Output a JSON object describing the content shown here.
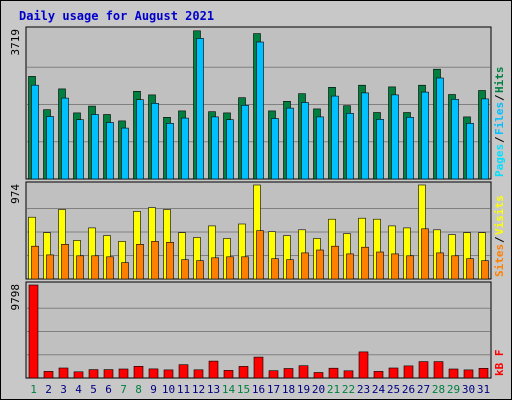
{
  "chart_data": {
    "type": "bar",
    "title": "Daily usage for August 2021",
    "categories": [
      "1",
      "2",
      "3",
      "4",
      "5",
      "6",
      "7",
      "8",
      "9",
      "10",
      "11",
      "12",
      "13",
      "14",
      "15",
      "16",
      "17",
      "18",
      "19",
      "20",
      "21",
      "22",
      "23",
      "24",
      "25",
      "26",
      "27",
      "28",
      "29",
      "30",
      "31"
    ],
    "weekend_days": [
      "1",
      "7",
      "8",
      "14",
      "15",
      "21",
      "22",
      "28",
      "29"
    ],
    "colors": {
      "background": "#c8c8c8",
      "plot": "#c0c0c0",
      "hits": "#008040",
      "files": "#00c0ff",
      "pages": "#00e0ff",
      "visits": "#ffff00",
      "sites": "#ff8000",
      "kb": "#ff0000",
      "title": "#0000cc",
      "weekday_label": "#000080",
      "weekend_label": "#008040"
    },
    "panels": [
      {
        "name": "hits-files-pages",
        "max_label": "3719",
        "ymax": 3719,
        "legend": [
          "Pages",
          "Files",
          "Hits"
        ],
        "series": [
          {
            "name": "Hits",
            "values": [
              2560,
              1730,
              2250,
              1650,
              1820,
              1610,
              1450,
              2190,
              2100,
              1540,
              1700,
              3700,
              1680,
              1650,
              2030,
              3630,
              1700,
              1940,
              2130,
              1750,
              2290,
              1830,
              2340,
              1660,
              2300,
              1660,
              2340,
              2740,
              2110,
              1550,
              2210
            ]
          },
          {
            "name": "Files",
            "values": [
              2340,
              1560,
              2020,
              1480,
              1610,
              1410,
              1270,
              1980,
              1890,
              1390,
              1520,
              3510,
              1550,
              1480,
              1840,
              3420,
              1510,
              1770,
              1910,
              1550,
              2070,
              1640,
              2150,
              1490,
              2100,
              1540,
              2170,
              2520,
              1990,
              1390,
              2000
            ]
          }
        ]
      },
      {
        "name": "visits-sites",
        "max_label": "974",
        "ymax": 974,
        "legend": [
          "Sites",
          "Visits"
        ],
        "series": [
          {
            "name": "Visits",
            "values": [
              640,
              480,
              720,
              400,
              530,
              450,
              390,
              700,
              740,
              720,
              480,
              430,
              550,
              420,
              570,
              974,
              490,
              450,
              510,
              420,
              620,
              470,
              630,
              620,
              550,
              530,
              974,
              510,
              460,
              480,
              480
            ]
          },
          {
            "name": "Sites",
            "values": [
              340,
              250,
              360,
              240,
              240,
              230,
              170,
              360,
              390,
              380,
              200,
              190,
              220,
              230,
              230,
              500,
              210,
              200,
              270,
              300,
              340,
              260,
              330,
              280,
              260,
              240,
              520,
              270,
              240,
              210,
              190
            ]
          }
        ]
      },
      {
        "name": "kbytes",
        "max_label": "9798",
        "ymax": 9798,
        "legend": [
          "kB F"
        ],
        "series": [
          {
            "name": "kB F",
            "values": [
              9798,
              700,
              1050,
              650,
              880,
              880,
              950,
              1230,
              960,
              850,
              1400,
              860,
              1780,
              800,
              1220,
              2200,
              770,
              1000,
              1300,
              580,
              1030,
              760,
              2750,
              700,
              1050,
              1270,
              1730,
              1730,
              950,
              850,
              1020
            ]
          }
        ]
      }
    ]
  }
}
